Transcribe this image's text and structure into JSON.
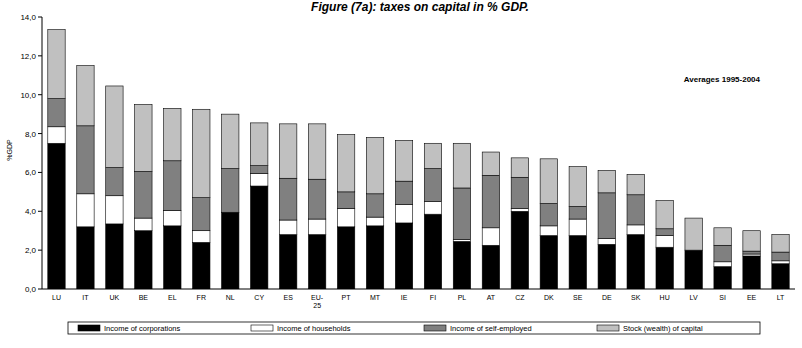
{
  "chart_data": {
    "type": "bar",
    "stacked": true,
    "grid": false,
    "legend": "bottom",
    "title": "Figure (7a): taxes on capital in % GDP.",
    "y_label": "%GDP",
    "annotations": [
      "Averages 1995-2004"
    ],
    "categories": [
      "LU",
      "IT",
      "UK",
      "BE",
      "EL",
      "FR",
      "NL",
      "CY",
      "ES",
      "EU-25",
      "PT",
      "MT",
      "IE",
      "FI",
      "PL",
      "AT",
      "CZ",
      "DK",
      "SE",
      "DE",
      "SK",
      "HU",
      "LV",
      "SI",
      "EE",
      "LT"
    ],
    "ylim": [
      0,
      14
    ],
    "yticks": [
      {
        "value": 0,
        "label": "0,0"
      },
      {
        "value": 2,
        "label": "2,0"
      },
      {
        "value": 4,
        "label": "4,0"
      },
      {
        "value": 6,
        "label": "6,0"
      },
      {
        "value": 8,
        "label": "8,0"
      },
      {
        "value": 10,
        "label": "10,0"
      },
      {
        "value": 12,
        "label": "12,0"
      },
      {
        "value": 14,
        "label": "14,0"
      }
    ],
    "series": [
      {
        "name": "Income of corporations",
        "color": "#000000",
        "values": [
          7.5,
          3.2,
          3.35,
          3.0,
          3.25,
          2.4,
          3.95,
          5.3,
          2.8,
          2.8,
          3.2,
          3.25,
          3.4,
          3.85,
          2.45,
          2.25,
          4.0,
          2.75,
          2.75,
          2.3,
          2.8,
          2.15,
          2.0,
          1.15,
          1.7,
          1.3
        ]
      },
      {
        "name": "Income of households",
        "color": "#ffffff",
        "values": [
          0.85,
          1.7,
          1.45,
          0.65,
          0.8,
          0.6,
          0.0,
          0.65,
          0.75,
          0.8,
          0.95,
          0.45,
          0.95,
          0.65,
          0.1,
          0.9,
          0.15,
          0.5,
          0.85,
          0.3,
          0.5,
          0.6,
          0.0,
          0.25,
          0.1,
          0.15
        ]
      },
      {
        "name": "Income of self-employed",
        "color": "#808080",
        "values": [
          1.45,
          3.5,
          1.45,
          2.4,
          2.55,
          1.7,
          2.25,
          0.4,
          2.15,
          2.05,
          0.85,
          1.2,
          1.2,
          1.7,
          2.65,
          2.7,
          1.6,
          1.15,
          0.65,
          2.35,
          1.55,
          0.35,
          0.0,
          0.85,
          0.15,
          0.45
        ]
      },
      {
        "name": "Stock (wealth) of capital",
        "color": "#c0c0c0",
        "values": [
          3.55,
          3.1,
          4.2,
          3.45,
          2.7,
          4.55,
          2.8,
          2.2,
          2.8,
          2.85,
          2.95,
          2.9,
          2.1,
          1.3,
          2.3,
          1.2,
          1.0,
          2.3,
          2.05,
          1.15,
          1.05,
          1.45,
          1.65,
          0.9,
          1.05,
          0.9
        ]
      }
    ]
  }
}
